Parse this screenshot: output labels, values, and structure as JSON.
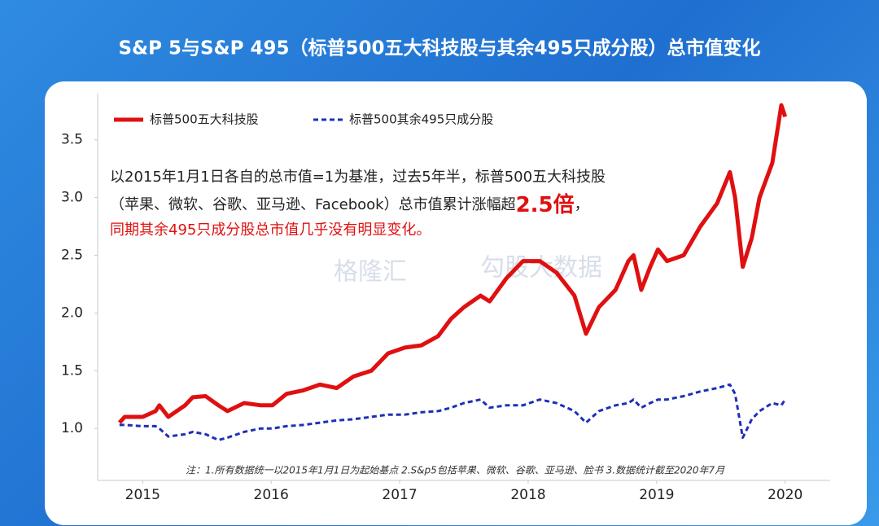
{
  "chart_data": {
    "type": "line",
    "title": "S&P 5与S&P 495（标普500五大科技股与其余495只成分股）总市值变化",
    "annotation": {
      "line1": "以2015年1月1日各自的总市值=1为基准，过去5年半，标普500五大科技股",
      "line2": "（苹果、微软、谷歌、亚马逊、Facebook）总市值累计涨幅超",
      "line2_highlight": "2.5倍",
      "line2_end": "，",
      "line3": "同期其余495只成分股总市值几乎没有明显变化。"
    },
    "note": "注：1.所有数据统一以2015年1月1日为起始基点    2.S&p5包括苹果、微软、谷歌、亚马逊、脸书    3.数据统计截至2020年7月",
    "watermark": [
      "格隆汇",
      "勾股大数据"
    ],
    "legend_position": "upper left",
    "grid": false,
    "xlim": [
      2014.65,
      2020.35
    ],
    "xticks": [
      2015,
      2016,
      2017,
      2018,
      2019,
      2020
    ],
    "ylim": [
      0.55,
      3.9
    ],
    "yticks": [
      {
        "value": 1,
        "label": "1.0"
      },
      1.5,
      {
        "value": 2,
        "label": "2.0"
      },
      2.5,
      {
        "value": 3,
        "label": "3.0"
      },
      3.5
    ],
    "x": [
      2014.82,
      2014.86,
      2015.0,
      2015.1,
      2015.13,
      2015.2,
      2015.33,
      2015.39,
      2015.49,
      2015.59,
      2015.66,
      2015.79,
      2015.92,
      2016.01,
      2016.12,
      2016.25,
      2016.38,
      2016.51,
      2016.64,
      2016.78,
      2016.91,
      2017.04,
      2017.17,
      2017.3,
      2017.4,
      2017.5,
      2017.63,
      2017.7,
      2017.83,
      2017.96,
      2018.09,
      2018.22,
      2018.36,
      2018.45,
      2018.55,
      2018.68,
      2018.78,
      2018.82,
      2018.88,
      2018.95,
      2019.01,
      2019.08,
      2019.21,
      2019.34,
      2019.47,
      2019.57,
      2019.61,
      2019.67,
      2019.74,
      2019.8,
      2019.9,
      2019.97,
      2020.0
    ],
    "series": [
      {
        "name": "标普500五大科技股",
        "color": "#e01010",
        "dash": false,
        "values": [
          1.05,
          1.1,
          1.1,
          1.15,
          1.2,
          1.1,
          1.2,
          1.27,
          1.28,
          1.2,
          1.15,
          1.22,
          1.2,
          1.2,
          1.3,
          1.33,
          1.38,
          1.35,
          1.45,
          1.5,
          1.65,
          1.7,
          1.72,
          1.8,
          1.95,
          2.05,
          2.15,
          2.1,
          2.3,
          2.45,
          2.45,
          2.35,
          2.15,
          1.82,
          2.05,
          2.2,
          2.45,
          2.5,
          2.2,
          2.4,
          2.55,
          2.45,
          2.5,
          2.75,
          2.95,
          3.22,
          3.0,
          2.4,
          2.65,
          3.0,
          3.3,
          3.8,
          3.7
        ]
      },
      {
        "name": "标普500其余495只成分股",
        "color": "#1f2fb8",
        "dash": true,
        "values": [
          1.03,
          1.03,
          1.02,
          1.02,
          1.0,
          0.93,
          0.95,
          0.97,
          0.95,
          0.9,
          0.92,
          0.97,
          1.0,
          1.0,
          1.02,
          1.03,
          1.05,
          1.07,
          1.08,
          1.1,
          1.12,
          1.12,
          1.14,
          1.15,
          1.18,
          1.22,
          1.25,
          1.18,
          1.2,
          1.2,
          1.25,
          1.22,
          1.15,
          1.05,
          1.15,
          1.2,
          1.22,
          1.25,
          1.18,
          1.22,
          1.25,
          1.25,
          1.28,
          1.32,
          1.35,
          1.38,
          1.3,
          0.92,
          1.08,
          1.15,
          1.22,
          1.2,
          1.25
        ]
      }
    ]
  }
}
